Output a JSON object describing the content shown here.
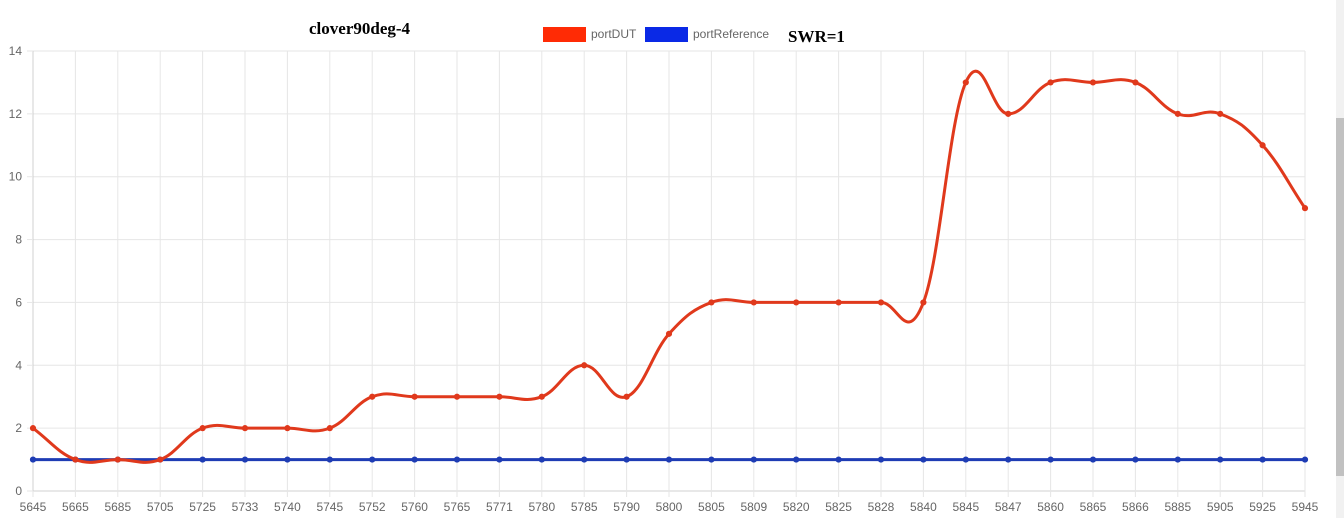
{
  "chart_data": {
    "type": "line",
    "title": "clover90deg-4",
    "annotation": "SWR=1",
    "categories": [
      "5645",
      "5665",
      "5685",
      "5705",
      "5725",
      "5733",
      "5740",
      "5745",
      "5752",
      "5760",
      "5765",
      "5771",
      "5780",
      "5785",
      "5790",
      "5800",
      "5805",
      "5809",
      "5820",
      "5825",
      "5828",
      "5840",
      "5845",
      "5847",
      "5860",
      "5865",
      "5866",
      "5885",
      "5905",
      "5925",
      "5945"
    ],
    "series": [
      {
        "name": "portDUT",
        "color": "#ff2b05",
        "line_color": "#e0391c",
        "values": [
          2,
          1,
          1,
          1,
          2,
          2,
          2,
          2,
          3,
          3,
          3,
          3,
          3,
          4,
          3,
          5,
          6,
          6,
          6,
          6,
          6,
          6,
          13,
          12,
          13,
          13,
          13,
          12,
          12,
          11,
          9
        ]
      },
      {
        "name": "portReference",
        "color": "#0a29e6",
        "line_color": "#1e3cb4",
        "values": [
          1,
          1,
          1,
          1,
          1,
          1,
          1,
          1,
          1,
          1,
          1,
          1,
          1,
          1,
          1,
          1,
          1,
          1,
          1,
          1,
          1,
          1,
          1,
          1,
          1,
          1,
          1,
          1,
          1,
          1,
          1
        ]
      }
    ],
    "ylim": [
      0,
      14
    ],
    "yticks": [
      0,
      2,
      4,
      6,
      8,
      10,
      12,
      14
    ],
    "grid": true,
    "legend_position": "top-center",
    "xlabel": "",
    "ylabel": ""
  }
}
